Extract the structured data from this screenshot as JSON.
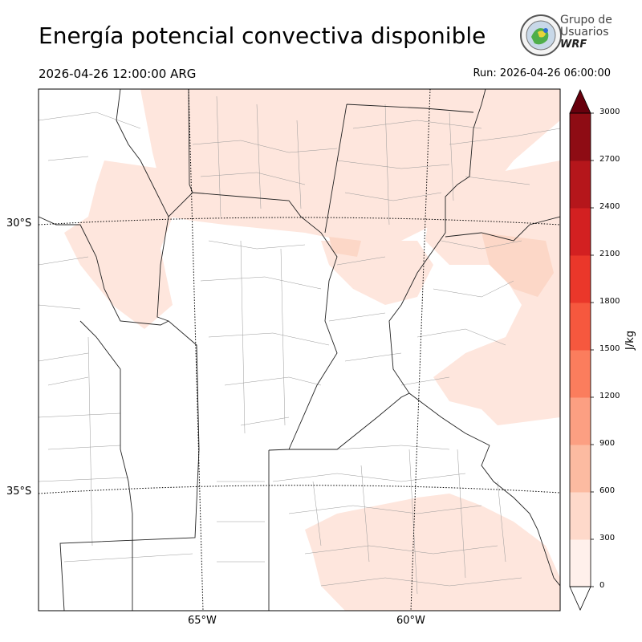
{
  "header": {
    "title": "Energía potencial convectiva disponible",
    "valid_time": "2026-04-26 12:00:00 ARG",
    "run_time": "Run: 2026-04-26 06:00:00"
  },
  "logo": {
    "line1": "Grupo de",
    "line2": "Usuarios",
    "line3": "WRF"
  },
  "map": {
    "lat_labels": [
      "30°S",
      "35°S"
    ],
    "lon_labels": [
      "65°W",
      "60°W"
    ]
  },
  "colorbar": {
    "unit": "J/kg",
    "ticks": [
      "0",
      "300",
      "600",
      "900",
      "1200",
      "1500",
      "1800",
      "2100",
      "2400",
      "2700",
      "3000"
    ],
    "colors": [
      "#fff0eb",
      "#fed9ca",
      "#fcbba1",
      "#fc9f82",
      "#fb7d5d",
      "#f6583e",
      "#ea372a",
      "#d32021",
      "#b5161b",
      "#8e0c14"
    ],
    "over_color": "#67000d"
  }
}
